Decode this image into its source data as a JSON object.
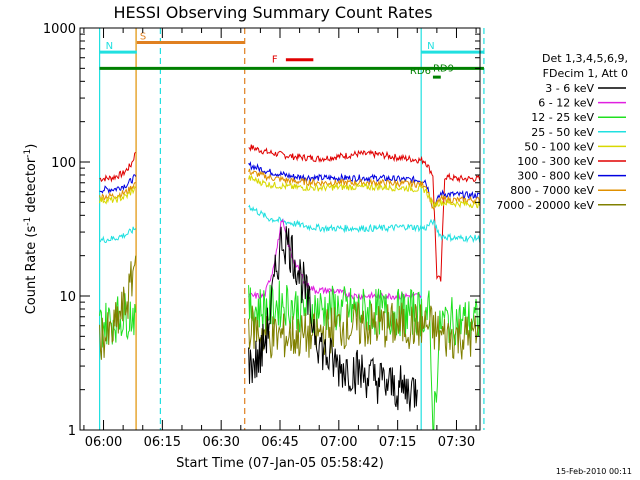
{
  "chart_data": {
    "type": "line",
    "title": "HESSI Observing Summary Count Rates",
    "xlabel": "Start Time (07-Jan-05 05:58:42)",
    "ylabel": "Count Rate (s",
    "ylabel_sup": "-1",
    "ylabel_mid": " detector",
    "ylabel_end": ")",
    "footer_date": "15-Feb-2010 00:11",
    "x_range_min": [
      5.9,
      7.6
    ],
    "ylim": [
      1,
      1000
    ],
    "yscale": "log",
    "x_ticks": [
      {
        "label": "06:00",
        "min": 360
      },
      {
        "label": "06:15",
        "min": 375
      },
      {
        "label": "06:30",
        "min": 390
      },
      {
        "label": "06:45",
        "min": 405
      },
      {
        "label": "07:00",
        "min": 420
      },
      {
        "label": "07:15",
        "min": 435
      },
      {
        "label": "07:30",
        "min": 450
      }
    ],
    "y_ticks": [
      {
        "label": "1",
        "v": 1
      },
      {
        "label": "10",
        "v": 10
      },
      {
        "label": "100",
        "v": 100
      },
      {
        "label": "1000",
        "v": 1000
      }
    ],
    "legend": {
      "title1": "Det 1,3,4,5,6,9,",
      "title2": "FDecim 1, Att 0",
      "entries": [
        {
          "label": "3 - 6 keV",
          "color": "#000000"
        },
        {
          "label": "6 - 12 keV",
          "color": "#e020e0"
        },
        {
          "label": "12 - 25 keV",
          "color": "#20e020"
        },
        {
          "label": "25 - 50 keV",
          "color": "#20e0e0"
        },
        {
          "label": "50 - 100 keV",
          "color": "#d8d800"
        },
        {
          "label": "100 - 300 keV",
          "color": "#e00000"
        },
        {
          "label": "300 - 800 keV",
          "color": "#0000e0"
        },
        {
          "label": "800 - 7000 keV",
          "color": "#e09000"
        },
        {
          "label": "7000 - 20000 keV",
          "color": "#808000"
        }
      ]
    },
    "flags": [
      {
        "label": "S",
        "color": "#e08020",
        "x0": 368.5,
        "x1": 396,
        "y": 780
      },
      {
        "label": "N",
        "color": "#20e0e0",
        "x0": 359,
        "x1": 368.5,
        "y": 660
      },
      {
        "label": "N",
        "color": "#20e0e0",
        "x0": 441,
        "x1": 457,
        "y": 660
      },
      {
        "label": "F",
        "color": "#e00000",
        "x0": 406.5,
        "x1": 413.5,
        "y": 580
      },
      {
        "label": "RD6",
        "color": "#008000",
        "x0": 444,
        "x1": 446,
        "y": 430
      },
      {
        "label": "RD9",
        "color": "#008000",
        "x0": 359,
        "x1": 457,
        "y": 500
      }
    ],
    "vlines": [
      {
        "x": 359,
        "color": "#20e0e0",
        "dash": false
      },
      {
        "x": 368.3,
        "color": "#e09000",
        "dash": false
      },
      {
        "x": 374.5,
        "color": "#20e0e0",
        "dash": true
      },
      {
        "x": 396,
        "color": "#e08020",
        "dash": true
      },
      {
        "x": 441,
        "color": "#20e0e0",
        "dash": false
      },
      {
        "x": 457,
        "color": "#20e0e0",
        "dash": true
      }
    ],
    "series": [
      {
        "name": "100 - 300 keV",
        "color": "#e00000",
        "segments": [
          [
            [
              359,
              75
            ],
            [
              362,
              76
            ],
            [
              365,
              82
            ],
            [
              367,
              95
            ],
            [
              368.2,
              118
            ]
          ],
          [
            [
              397,
              130
            ],
            [
              402,
              118
            ],
            [
              408,
              110
            ],
            [
              415,
              106
            ],
            [
              420,
              110
            ],
            [
              425,
              115
            ],
            [
              430,
              114
            ],
            [
              435,
              108
            ],
            [
              440,
              104
            ],
            [
              442,
              102
            ],
            [
              443,
              90
            ],
            [
              444,
              80
            ],
            [
              445,
              14
            ],
            [
              446,
              13
            ],
            [
              447,
              78
            ],
            [
              450,
              75
            ],
            [
              454,
              75
            ],
            [
              457,
              75
            ]
          ]
        ]
      },
      {
        "name": "300 - 800 keV",
        "color": "#0000e0",
        "segments": [
          [
            [
              359,
              62
            ],
            [
              363,
              63
            ],
            [
              366,
              68
            ],
            [
              368.2,
              78
            ]
          ],
          [
            [
              397,
              95
            ],
            [
              402,
              85
            ],
            [
              408,
              78
            ],
            [
              415,
              76
            ],
            [
              420,
              76
            ],
            [
              430,
              76
            ],
            [
              437,
              74
            ],
            [
              442,
              73
            ],
            [
              443,
              60
            ],
            [
              444,
              45
            ],
            [
              446,
              58
            ],
            [
              450,
              57
            ],
            [
              457,
              56
            ]
          ]
        ]
      },
      {
        "name": "800 - 7000 keV",
        "color": "#e09000",
        "segments": [
          [
            [
              359,
              55
            ],
            [
              363,
              56
            ],
            [
              366,
              60
            ],
            [
              368.2,
              70
            ]
          ],
          [
            [
              397,
              85
            ],
            [
              402,
              77
            ],
            [
              408,
              72
            ],
            [
              415,
              70
            ],
            [
              420,
              70
            ],
            [
              430,
              70
            ],
            [
              437,
              69
            ],
            [
              442,
              68
            ],
            [
              443,
              58
            ],
            [
              444,
              45
            ],
            [
              446,
              53
            ],
            [
              450,
              52
            ],
            [
              457,
              52
            ]
          ]
        ]
      },
      {
        "name": "50 - 100 keV",
        "color": "#d8d800",
        "segments": [
          [
            [
              359,
              52
            ],
            [
              363,
              52
            ],
            [
              366,
              56
            ],
            [
              368.2,
              64
            ]
          ],
          [
            [
              397,
              76
            ],
            [
              402,
              68
            ],
            [
              408,
              65
            ],
            [
              415,
              64
            ],
            [
              420,
              65
            ],
            [
              430,
              65
            ],
            [
              437,
              64
            ],
            [
              442,
              62
            ],
            [
              443,
              55
            ],
            [
              444,
              48
            ],
            [
              446,
              50
            ],
            [
              450,
              49
            ],
            [
              457,
              48
            ]
          ]
        ]
      },
      {
        "name": "25 - 50 keV",
        "color": "#20e0e0",
        "segments": [
          [
            [
              359,
              26
            ],
            [
              363,
              27
            ],
            [
              366,
              29
            ],
            [
              368.2,
              32
            ]
          ],
          [
            [
              397,
              47
            ],
            [
              402,
              38
            ],
            [
              408,
              35
            ],
            [
              412,
              33
            ],
            [
              416,
              32
            ],
            [
              420,
              32
            ],
            [
              426,
              32
            ],
            [
              432,
              32
            ],
            [
              437,
              33
            ],
            [
              442,
              32
            ],
            [
              443,
              34
            ],
            [
              444,
              36
            ],
            [
              446,
              28
            ],
            [
              450,
              27
            ],
            [
              457,
              27
            ]
          ]
        ]
      },
      {
        "name": "6 - 12 keV",
        "color": "#e020e0",
        "segments": [
          [
            [
              397,
              10
            ],
            [
              401,
              10
            ],
            [
              403,
              15
            ],
            [
              404.5,
              25
            ],
            [
              405.5,
              38
            ],
            [
              406.5,
              28
            ],
            [
              408,
              20
            ],
            [
              410,
              15
            ],
            [
              412,
              12
            ],
            [
              414,
              11
            ],
            [
              418,
              11
            ],
            [
              424,
              10
            ],
            [
              430,
              10
            ],
            [
              436,
              10
            ],
            [
              441,
              10
            ]
          ]
        ]
      },
      {
        "name": "12 - 25 keV",
        "color": "#20e020",
        "segments": [
          [
            [
              359,
              6
            ],
            [
              362,
              6.5
            ],
            [
              365,
              7.2
            ],
            [
              368.2,
              7.5
            ]
          ],
          [
            [
              397,
              8
            ],
            [
              402,
              8
            ],
            [
              406,
              9
            ],
            [
              410,
              8
            ],
            [
              416,
              8
            ],
            [
              420,
              8
            ],
            [
              426,
              7.8
            ],
            [
              432,
              7.5
            ],
            [
              437,
              7.5
            ],
            [
              442,
              7.5
            ],
            [
              443,
              7.5
            ],
            [
              444,
              1
            ],
            [
              446,
              6.5
            ],
            [
              450,
              6.5
            ],
            [
              457,
              6.5
            ]
          ]
        ]
      },
      {
        "name": "7000 - 20000 keV",
        "color": "#808000",
        "segments": [
          [
            [
              359,
              5
            ],
            [
              362,
              5
            ],
            [
              364,
              7
            ],
            [
              366,
              9
            ],
            [
              367,
              12
            ],
            [
              368.2,
              20
            ]
          ],
          [
            [
              397,
              6
            ],
            [
              402,
              5
            ],
            [
              408,
              5
            ],
            [
              414,
              5
            ],
            [
              420,
              6
            ],
            [
              426,
              6
            ],
            [
              432,
              6
            ],
            [
              437,
              6
            ],
            [
              442,
              6
            ],
            [
              443,
              6
            ],
            [
              446,
              5
            ],
            [
              450,
              5
            ],
            [
              457,
              5
            ]
          ]
        ]
      },
      {
        "name": "3 - 6 keV",
        "color": "#000000",
        "segments": [
          [
            [
              397,
              3
            ],
            [
              400,
              3.5
            ],
            [
              402,
              6
            ],
            [
              404,
              15
            ],
            [
              405.5,
              27
            ],
            [
              407,
              25
            ],
            [
              409,
              18
            ],
            [
              411,
              12
            ],
            [
              413,
              7
            ],
            [
              415,
              4.5
            ],
            [
              417,
              3.5
            ],
            [
              420,
              3
            ],
            [
              424,
              2.8
            ],
            [
              428,
              2.5
            ],
            [
              432,
              2.2
            ],
            [
              436,
              2
            ],
            [
              440,
              2
            ]
          ]
        ]
      }
    ]
  }
}
